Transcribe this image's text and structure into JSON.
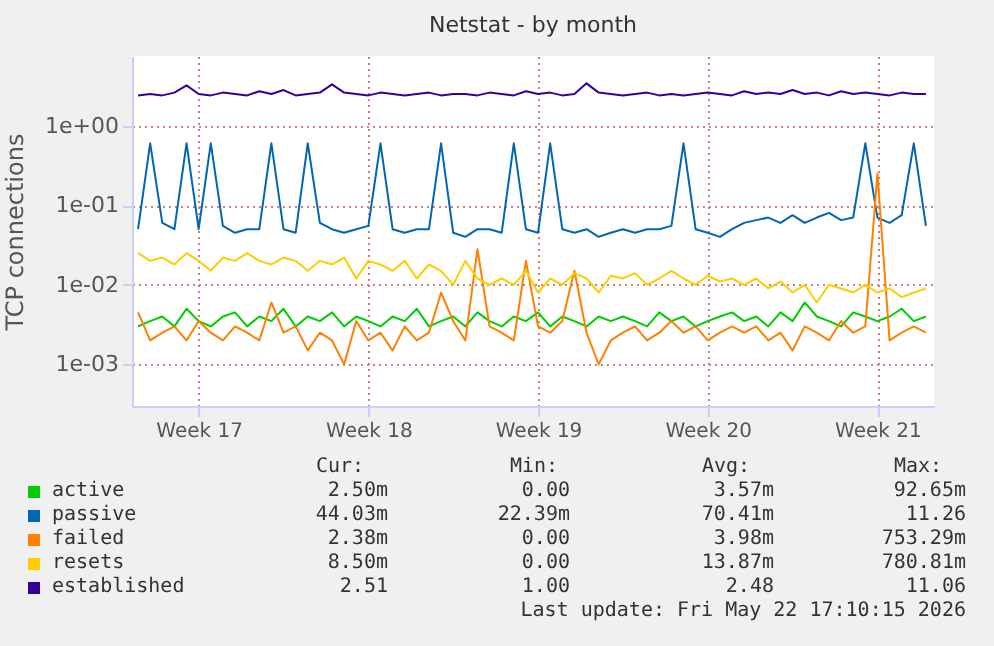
{
  "chart_data": {
    "type": "line",
    "title": "Netstat - by month",
    "ylabel": "TCP connections",
    "log": "y",
    "grid": true,
    "legend": "bottom",
    "ylim": [
      0.0003,
      7.5
    ],
    "yticks": [
      {
        "value": 1,
        "label": "1e+00"
      },
      {
        "value": 0.1,
        "label": "1e-01"
      },
      {
        "value": 0.01,
        "label": "1e-02"
      },
      {
        "value": 0.001,
        "label": "1e-03"
      }
    ],
    "xlim": [
      "2026-04-20T18:00",
      "2026-05-23T20:00"
    ],
    "xticks": [
      {
        "value": "2026-04-23T12:00",
        "label": "Week 17"
      },
      {
        "value": "2026-04-30T12:00",
        "label": "Week 18"
      },
      {
        "value": "2026-05-07T12:00",
        "label": "Week 19"
      },
      {
        "value": "2026-05-14T12:00",
        "label": "Week 20"
      },
      {
        "value": "2026-05-21T12:00",
        "label": "Week 21"
      }
    ],
    "x": [
      "2026-04-21T00:00",
      "2026-04-21T12:00",
      "2026-04-22T00:00",
      "2026-04-22T12:00",
      "2026-04-23T00:00",
      "2026-04-23T12:00",
      "2026-04-24T00:00",
      "2026-04-24T12:00",
      "2026-04-25T00:00",
      "2026-04-25T12:00",
      "2026-04-26T00:00",
      "2026-04-26T12:00",
      "2026-04-27T00:00",
      "2026-04-27T12:00",
      "2026-04-28T00:00",
      "2026-04-28T12:00",
      "2026-04-29T00:00",
      "2026-04-29T12:00",
      "2026-04-30T00:00",
      "2026-04-30T12:00",
      "2026-05-01T00:00",
      "2026-05-01T12:00",
      "2026-05-02T00:00",
      "2026-05-02T12:00",
      "2026-05-03T00:00",
      "2026-05-03T12:00",
      "2026-05-04T00:00",
      "2026-05-04T12:00",
      "2026-05-05T00:00",
      "2026-05-05T12:00",
      "2026-05-06T00:00",
      "2026-05-06T12:00",
      "2026-05-07T00:00",
      "2026-05-07T12:00",
      "2026-05-08T00:00",
      "2026-05-08T12:00",
      "2026-05-09T00:00",
      "2026-05-09T12:00",
      "2026-05-10T00:00",
      "2026-05-10T12:00",
      "2026-05-11T00:00",
      "2026-05-11T12:00",
      "2026-05-12T00:00",
      "2026-05-12T12:00",
      "2026-05-13T00:00",
      "2026-05-13T12:00",
      "2026-05-14T00:00",
      "2026-05-14T12:00",
      "2026-05-15T00:00",
      "2026-05-15T12:00",
      "2026-05-16T00:00",
      "2026-05-16T12:00",
      "2026-05-17T00:00",
      "2026-05-17T12:00",
      "2026-05-18T00:00",
      "2026-05-18T12:00",
      "2026-05-19T00:00",
      "2026-05-19T12:00",
      "2026-05-20T00:00",
      "2026-05-20T12:00",
      "2026-05-21T00:00",
      "2026-05-21T12:00",
      "2026-05-22T00:00",
      "2026-05-22T12:00",
      "2026-05-23T00:00",
      "2026-05-23T12:00"
    ],
    "series": [
      {
        "name": "active",
        "color": "#00cc00",
        "values": [
          0.003,
          0.0035,
          0.004,
          0.003,
          0.005,
          0.0035,
          0.003,
          0.004,
          0.0045,
          0.003,
          0.004,
          0.0035,
          0.005,
          0.003,
          0.004,
          0.0035,
          0.0045,
          0.003,
          0.004,
          0.0035,
          0.003,
          0.004,
          0.0035,
          0.005,
          0.003,
          0.0035,
          0.004,
          0.003,
          0.0045,
          0.0035,
          0.003,
          0.004,
          0.0035,
          0.0045,
          0.003,
          0.004,
          0.0035,
          0.003,
          0.004,
          0.0035,
          0.004,
          0.0035,
          0.003,
          0.0045,
          0.0035,
          0.004,
          0.003,
          0.0035,
          0.004,
          0.0045,
          0.0035,
          0.004,
          0.003,
          0.0045,
          0.0035,
          0.006,
          0.004,
          0.0035,
          0.003,
          0.0045,
          0.004,
          0.0035,
          0.004,
          0.005,
          0.0035,
          0.004
        ]
      },
      {
        "name": "passive",
        "color": "#0066b3",
        "values": [
          0.05,
          0.6,
          0.06,
          0.05,
          0.6,
          0.05,
          0.6,
          0.055,
          0.045,
          0.05,
          0.05,
          0.6,
          0.05,
          0.045,
          0.6,
          0.06,
          0.05,
          0.045,
          0.05,
          0.055,
          0.6,
          0.05,
          0.045,
          0.05,
          0.05,
          0.6,
          0.045,
          0.04,
          0.05,
          0.05,
          0.045,
          0.6,
          0.05,
          0.045,
          0.6,
          0.05,
          0.045,
          0.05,
          0.04,
          0.045,
          0.05,
          0.045,
          0.05,
          0.05,
          0.055,
          0.6,
          0.05,
          0.045,
          0.04,
          0.05,
          0.06,
          0.065,
          0.07,
          0.06,
          0.075,
          0.06,
          0.07,
          0.08,
          0.065,
          0.07,
          0.6,
          0.07,
          0.06,
          0.075,
          0.6,
          0.055
        ]
      },
      {
        "name": "failed",
        "color": "#ff8000",
        "values": [
          0.0045,
          0.002,
          0.0025,
          0.003,
          0.002,
          0.0035,
          0.0025,
          0.002,
          0.003,
          0.0025,
          0.002,
          0.006,
          0.0025,
          0.003,
          0.0015,
          0.0025,
          0.002,
          0.001,
          0.0035,
          0.002,
          0.0025,
          0.0015,
          0.003,
          0.002,
          0.0025,
          0.008,
          0.0035,
          0.002,
          0.028,
          0.003,
          0.0025,
          0.002,
          0.02,
          0.003,
          0.0025,
          0.0035,
          0.015,
          0.0025,
          0.001,
          0.002,
          0.0025,
          0.003,
          0.002,
          0.0025,
          0.0035,
          0.0025,
          0.003,
          0.002,
          0.0025,
          0.003,
          0.0025,
          0.003,
          0.002,
          0.0025,
          0.0015,
          0.003,
          0.0025,
          0.002,
          0.0035,
          0.0025,
          0.003,
          0.25,
          0.002,
          0.0025,
          0.003,
          0.0025
        ]
      },
      {
        "name": "resets",
        "color": "#ffcc00",
        "values": [
          0.025,
          0.02,
          0.022,
          0.018,
          0.025,
          0.02,
          0.015,
          0.022,
          0.02,
          0.025,
          0.02,
          0.018,
          0.022,
          0.02,
          0.015,
          0.02,
          0.018,
          0.022,
          0.012,
          0.02,
          0.018,
          0.015,
          0.02,
          0.012,
          0.018,
          0.015,
          0.01,
          0.02,
          0.012,
          0.01,
          0.012,
          0.01,
          0.015,
          0.008,
          0.012,
          0.01,
          0.014,
          0.012,
          0.008,
          0.013,
          0.012,
          0.014,
          0.01,
          0.012,
          0.015,
          0.012,
          0.01,
          0.013,
          0.011,
          0.012,
          0.01,
          0.012,
          0.009,
          0.011,
          0.008,
          0.01,
          0.006,
          0.01,
          0.009,
          0.008,
          0.01,
          0.008,
          0.009,
          0.007,
          0.008,
          0.009
        ]
      },
      {
        "name": "established",
        "color": "#330099",
        "values": [
          2.4,
          2.5,
          2.4,
          2.6,
          3.2,
          2.5,
          2.4,
          2.6,
          2.5,
          2.4,
          2.7,
          2.5,
          2.8,
          2.4,
          2.5,
          2.6,
          3.3,
          2.6,
          2.5,
          2.4,
          2.6,
          2.5,
          2.4,
          2.5,
          2.6,
          2.4,
          2.5,
          2.5,
          2.4,
          2.6,
          2.5,
          2.4,
          2.7,
          2.5,
          2.6,
          2.4,
          2.5,
          3.4,
          2.6,
          2.5,
          2.4,
          2.5,
          2.6,
          2.4,
          2.5,
          2.4,
          2.5,
          2.6,
          2.5,
          2.4,
          2.7,
          2.5,
          2.6,
          2.5,
          2.8,
          2.5,
          2.6,
          2.4,
          2.7,
          2.5,
          2.6,
          2.5,
          2.4,
          2.6,
          2.5,
          2.5
        ]
      }
    ],
    "annotations": [
      "Cur:",
      "Min:",
      "Avg:",
      "Max:",
      "2.50m",
      "0.00",
      "3.57m",
      "92.65m",
      "44.03m",
      "22.39m",
      "70.41m",
      "11.26",
      "2.38m",
      "0.00",
      "3.98m",
      "753.29m",
      "8.50m",
      "0.00",
      "13.87m",
      "780.81m",
      "2.51",
      "1.00",
      "2.48",
      "11.06",
      "Last update: Fri May 22 17:10:15 2026"
    ]
  }
}
